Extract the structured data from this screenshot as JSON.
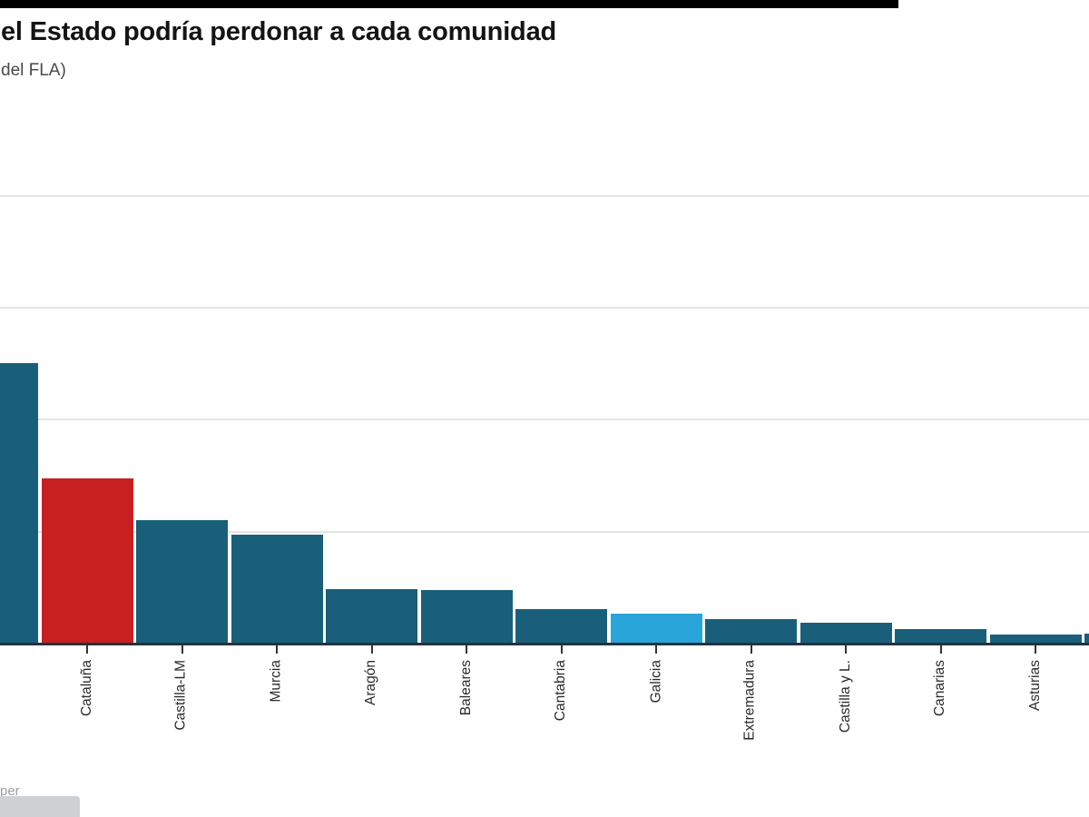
{
  "header": {
    "title": "el Estado podría perdonar a cada comunidad",
    "subtitle": "del FLA)"
  },
  "footer": {
    "attribution_fragment": "per"
  },
  "colors": {
    "bar_default": "#1a5f7a",
    "bar_highlight_red": "#c82021",
    "bar_highlight_blue": "#29a5d9",
    "axis": "#24333d",
    "tick": "#333333",
    "gridline": "#e4e4e4",
    "title_text": "#141414",
    "subtitle_text": "#4a4a4a",
    "label_text": "#2a2a2a",
    "attribution_text": "#9aa0a5"
  },
  "chart_data": {
    "type": "bar",
    "title": "el Estado podría perdonar a cada comunidad",
    "subtitle": "del FLA)",
    "categories": [
      "",
      "Cataluña",
      "Castilla-LM",
      "Murcia",
      "Aragón",
      "Baleares",
      "Cantabria",
      "Galicia",
      "Extremadura",
      "Castilla y L.",
      "Canarias",
      "Asturias",
      ""
    ],
    "values": [
      2.51,
      1.48,
      1.1,
      0.97,
      0.49,
      0.48,
      0.31,
      0.27,
      0.22,
      0.19,
      0.13,
      0.08,
      0.09
    ],
    "value_unit": "gridline-intervals (y-axis tick labels not visible in crop)",
    "bar_colors": [
      "#1a5f7a",
      "#c82021",
      "#1a5f7a",
      "#1a5f7a",
      "#1a5f7a",
      "#1a5f7a",
      "#1a5f7a",
      "#29a5d9",
      "#1a5f7a",
      "#1a5f7a",
      "#1a5f7a",
      "#1a5f7a",
      "#1a5f7a"
    ],
    "xlabel": "",
    "ylabel": "",
    "ylim": [
      0,
      4
    ],
    "gridlines_at": [
      1,
      2,
      3,
      4
    ],
    "grid": true,
    "legend": false,
    "x_labels_rotated_deg": -90,
    "first_and_last_bars_cut_off": true
  }
}
